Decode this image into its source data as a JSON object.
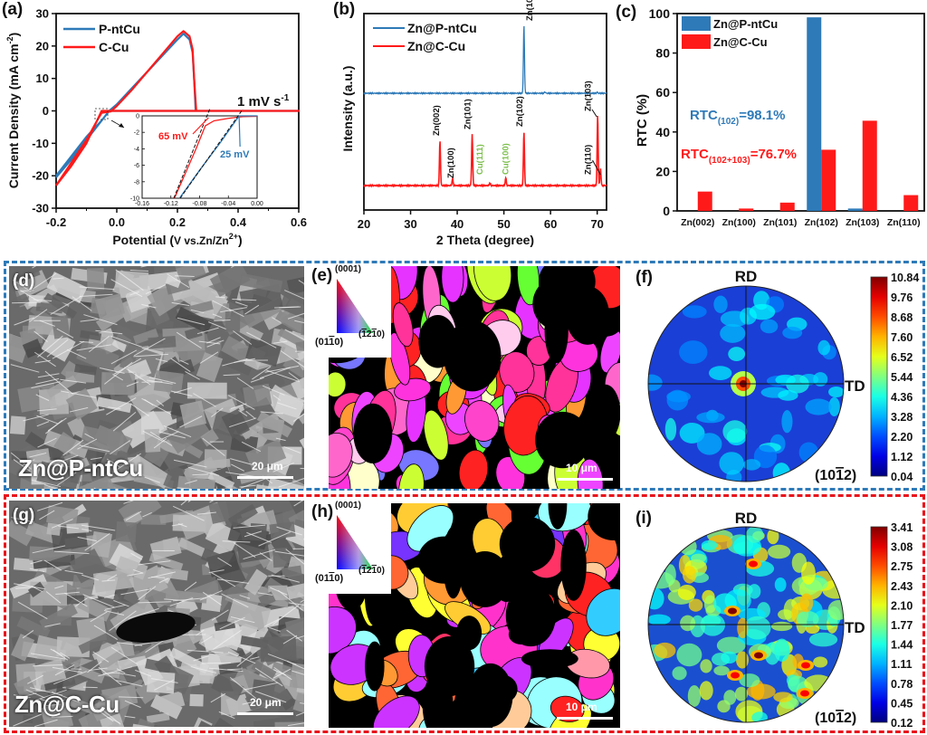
{
  "figure": {
    "panel_labels": [
      "(a)",
      "(b)",
      "(c)",
      "(d)",
      "(e)",
      "(f)",
      "(g)",
      "(h)",
      "(i)"
    ],
    "colors": {
      "blue": "#2e7ab8",
      "red": "#ff1a1a",
      "green_label": "#7bbf4a",
      "frame_blue": "#2e7ab8",
      "frame_red": "#e8141c"
    }
  },
  "chart_data": [
    {
      "id": "a",
      "type": "line",
      "title": "",
      "xlabel": "Potential (V vs.Zn/Zn2+)",
      "xlabel_main": "Potential (",
      "xlabel_unit": "V vs.Zn/Zn",
      "xlabel_sup": "2+",
      "xlabel_end": ")",
      "ylabel": "Current Density (mA cm-2)",
      "ylabel_main": "Current Density (mA cm",
      "ylabel_sup": "-2",
      "ylabel_end": ")",
      "xlim": [
        -0.2,
        0.6
      ],
      "ylim": [
        -30,
        30
      ],
      "xticks": [
        "-0.2",
        "0.0",
        "0.2",
        "0.4",
        "0.6"
      ],
      "xtick_values": [
        -0.2,
        0.0,
        0.2,
        0.4,
        0.6
      ],
      "yticks": [
        "30",
        "20",
        "10",
        "0",
        "-10",
        "-20",
        "-30"
      ],
      "ytick_values": [
        30,
        20,
        10,
        0,
        -10,
        -20,
        -30
      ],
      "legend": [
        "P-ntCu",
        "C-Cu"
      ],
      "legend_position": "top-left",
      "annotation": "1 mV s-1",
      "annotation_main": "1 mV s",
      "annotation_sup": "-1",
      "series": [
        {
          "name": "P-ntCu",
          "color": "#2e7ab8",
          "x": [
            -0.2,
            -0.15,
            -0.1,
            -0.05,
            -0.025,
            0.0,
            0.05,
            0.1,
            0.15,
            0.2,
            0.22,
            0.24,
            0.25,
            0.255,
            0.26,
            0.3,
            0.6,
            0.3,
            0.26,
            0.1,
            0.0,
            -0.025,
            -0.05,
            -0.1,
            -0.15,
            -0.2
          ],
          "y": [
            -20,
            -14,
            -8,
            -3,
            0,
            2,
            7,
            12,
            17,
            22,
            23.8,
            22,
            18,
            10,
            0,
            0,
            0,
            0,
            0,
            0,
            0,
            0,
            -3,
            -9,
            -15,
            -20.5
          ]
        },
        {
          "name": "C-Cu",
          "color": "#ff1a1a",
          "x": [
            -0.2,
            -0.15,
            -0.1,
            -0.065,
            -0.05,
            -0.02,
            0.0,
            0.05,
            0.1,
            0.15,
            0.2,
            0.22,
            0.24,
            0.25,
            0.255,
            0.262,
            0.3,
            0.6,
            0.3,
            0.1,
            0.0,
            -0.05,
            -0.07,
            -0.1,
            -0.15,
            -0.2
          ],
          "y": [
            -23,
            -16,
            -9,
            -3,
            -0.6,
            -0.2,
            1.5,
            6.5,
            12,
            17.5,
            23,
            24.6,
            23,
            19,
            10,
            0,
            0,
            0,
            0,
            0,
            0,
            0,
            -4,
            -10,
            -17,
            -23
          ]
        }
      ],
      "inset": {
        "xlim": [
          -0.16,
          0.0
        ],
        "ylim": [
          -10,
          0
        ],
        "xticks": [
          "-0.16",
          "-0.12",
          "-0.08",
          "-0.04",
          "0.00"
        ],
        "xtick_values": [
          -0.16,
          -0.12,
          -0.08,
          -0.04,
          0.0
        ],
        "yticks": [
          "0",
          "-2",
          "-4",
          "-6",
          "-8",
          "-10"
        ],
        "ytick_values": [
          0,
          -2,
          -4,
          -6,
          -8,
          -10
        ],
        "annotations": [
          {
            "text": "65 mV",
            "color": "#ff1a1a",
            "x": -0.065
          },
          {
            "text": "25 mV",
            "color": "#2e7ab8",
            "x": -0.025
          }
        ],
        "series": [
          {
            "name": "C-Cu",
            "color": "#ff1a1a",
            "x": [
              -0.115,
              -0.1,
              -0.085,
              -0.072,
              -0.06,
              -0.04,
              -0.02,
              0.0
            ],
            "y": [
              -10,
              -7,
              -4,
              -1.2,
              -0.6,
              -0.3,
              -0.1,
              -0.05
            ]
          },
          {
            "name": "P-ntCu",
            "color": "#2e7ab8",
            "x": [
              -0.108,
              -0.08,
              -0.05,
              -0.025,
              -0.015,
              0.0
            ],
            "y": [
              -10,
              -6.6,
              -3.1,
              0,
              0,
              0
            ]
          }
        ]
      }
    },
    {
      "id": "b",
      "type": "line",
      "title": "",
      "xlabel": "2 Theta (degree)",
      "ylabel": "Intensity (a.u.)",
      "xlim": [
        20,
        72
      ],
      "xticks": [
        "20",
        "30",
        "40",
        "50",
        "60",
        "70"
      ],
      "xtick_values": [
        20,
        30,
        40,
        50,
        60,
        70
      ],
      "legend": [
        "Zn@P-ntCu",
        "Zn@C-Cu"
      ],
      "legend_position": "top-left",
      "series": [
        {
          "name": "Zn@P-ntCu",
          "color": "#2e7ab8",
          "peaks": [
            {
              "x": 54.3,
              "h": 1.0
            },
            {
              "x": 58.8,
              "h": 0.02
            },
            {
              "x": 70.0,
              "h": 0.015
            }
          ]
        },
        {
          "name": "Zn@C-Cu",
          "color": "#ff1a1a",
          "peaks": [
            {
              "x": 36.3,
              "h": 0.52
            },
            {
              "x": 39.0,
              "h": 0.08
            },
            {
              "x": 43.2,
              "h": 0.6
            },
            {
              "x": 47.0,
              "h": 0.03
            },
            {
              "x": 50.4,
              "h": 0.09
            },
            {
              "x": 54.3,
              "h": 0.62
            },
            {
              "x": 70.1,
              "h": 0.82
            },
            {
              "x": 70.7,
              "h": 0.2
            }
          ]
        }
      ],
      "peak_labels": [
        {
          "text": "Zn(102)",
          "x": 54.3,
          "series": "Zn@P-ntCu",
          "color": "#111111"
        },
        {
          "text": "Zn(002)",
          "x": 36.3,
          "series": "Zn@C-Cu",
          "color": "#111111"
        },
        {
          "text": "Zn(100)",
          "x": 39.0,
          "series": "Zn@C-Cu",
          "color": "#111111"
        },
        {
          "text": "Zn(101)",
          "x": 43.2,
          "series": "Zn@C-Cu",
          "color": "#111111"
        },
        {
          "text": "Cu(111)",
          "x": 44.8,
          "series": "Zn@C-Cu",
          "color": "#7bbf4a"
        },
        {
          "text": "Cu(100)",
          "x": 50.4,
          "series": "Zn@C-Cu",
          "color": "#7bbf4a"
        },
        {
          "text": "Zn(102)",
          "x": 54.3,
          "series": "Zn@C-Cu",
          "color": "#111111"
        },
        {
          "text": "Zn(103)",
          "x": 68.6,
          "series": "Zn@C-Cu",
          "color": "#111111"
        },
        {
          "text": "Zn(110)",
          "x": 68.6,
          "series": "Zn@C-Cu",
          "color": "#111111"
        }
      ]
    },
    {
      "id": "c",
      "type": "bar",
      "title": "",
      "xlabel": "",
      "ylabel": "RTC (%)",
      "ylim": [
        0,
        100
      ],
      "yticks": [
        "0",
        "20",
        "40",
        "60",
        "80",
        "100"
      ],
      "ytick_values": [
        0,
        20,
        40,
        60,
        80,
        100
      ],
      "categories": [
        "Zn(002)",
        "Zn(100)",
        "Zn(101)",
        "Zn(102)",
        "Zn(103)",
        "Zn(110)"
      ],
      "legend": [
        "Zn@P-ntCu",
        "Zn@C-Cu"
      ],
      "legend_position": "top-left",
      "series": [
        {
          "name": "Zn@P-ntCu",
          "color": "#2e7ab8",
          "values": [
            0,
            0,
            0,
            98.1,
            1.2,
            0
          ]
        },
        {
          "name": "Zn@C-Cu",
          "color": "#ff1a1a",
          "values": [
            9.8,
            1.2,
            4.2,
            31,
            45.7,
            8
          ]
        }
      ],
      "annotations": [
        {
          "main": "RTC",
          "sub": "(102)",
          "rest": "=98.1%",
          "color": "#2e7ab8"
        },
        {
          "main": "RTC",
          "sub": "(102+103)",
          "rest": "=76.7%",
          "color": "#ff1a1a"
        }
      ]
    }
  ],
  "sem_panels": [
    {
      "id": "d",
      "caption": "Zn@P-ntCu",
      "scale": "20 μm"
    },
    {
      "id": "g",
      "caption": "Zn@C-Cu",
      "scale": "20 μm"
    }
  ],
  "ebsd_panels": [
    {
      "id": "e",
      "scale": "10 μm",
      "key_top": "(0001)",
      "key_left": "(01",
      "key_left_bar": "1",
      "key_left_end": "0)",
      "key_right": "(",
      "key_right_bar1": "1",
      "key_right_mid": "2",
      "key_right_bar2": "1",
      "key_right_end": "0)"
    },
    {
      "id": "h",
      "scale": "10 μm",
      "key_top": "(0001)",
      "key_left": "(01",
      "key_left_bar": "1",
      "key_left_end": "0)",
      "key_right": "(",
      "key_right_bar1": "1",
      "key_right_mid": "2",
      "key_right_bar2": "1",
      "key_right_end": "0)"
    }
  ],
  "pole_figures": [
    {
      "id": "f",
      "rd": "RD",
      "td": "TD",
      "plane_pre": "(10",
      "plane_bar": "1",
      "plane_post": "2)",
      "colorbar": [
        "10.84",
        "9.76",
        "8.68",
        "7.60",
        "6.52",
        "5.44",
        "4.36",
        "3.28",
        "2.20",
        "1.12",
        "0.04"
      ],
      "max": 10.84,
      "min": 0.04
    },
    {
      "id": "i",
      "rd": "RD",
      "td": "TD",
      "plane_pre": "(10",
      "plane_bar": "1",
      "plane_post": "2)",
      "colorbar": [
        "3.41",
        "3.08",
        "2.75",
        "2.43",
        "2.10",
        "1.77",
        "1.44",
        "1.11",
        "0.78",
        "0.45",
        "0.12"
      ],
      "max": 3.41,
      "min": 0.12
    }
  ]
}
